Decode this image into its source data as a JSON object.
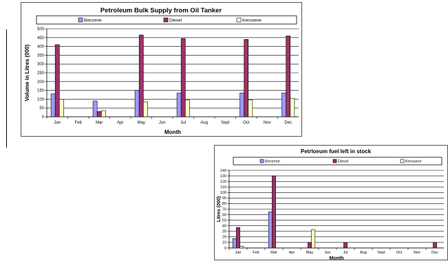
{
  "charts": [
    {
      "id": "supply",
      "chart_data": {
        "type": "bar",
        "title": "Petroleum Bulk Supply from Oil Tanker",
        "xlabel": "Month",
        "ylabel": "Volume in Litres (000)",
        "categories": [
          "Jan",
          "Feb",
          "Mar",
          "Apr",
          "May",
          "Jun",
          "Jul",
          "Aug",
          "Sept",
          "Oct",
          "Nov",
          "Dec"
        ],
        "ylim": [
          0,
          500
        ],
        "yticks": [
          "0",
          "50",
          "100",
          "150",
          "200",
          "250",
          "300",
          "350",
          "400",
          "450",
          "500"
        ],
        "grid": true,
        "legend_position": "top",
        "series": [
          {
            "name": "Benzene",
            "color": "#9999ff",
            "values": [
              130,
              0,
              90,
              0,
              150,
              0,
              135,
              0,
              0,
              135,
              0,
              135
            ]
          },
          {
            "name": "Diesel",
            "color": "#993366",
            "values": [
              410,
              0,
              30,
              0,
              465,
              0,
              445,
              0,
              0,
              440,
              0,
              460
            ]
          },
          {
            "name": "Kerosene",
            "color": "#ffffcc",
            "values": [
              100,
              0,
              35,
              0,
              85,
              0,
              95,
              0,
              0,
              95,
              0,
              105
            ]
          }
        ]
      }
    },
    {
      "id": "stock",
      "chart_data": {
        "type": "bar",
        "title": "Petrloeum fuel left in stock",
        "xlabel": "Month",
        "ylabel": "Litres (000)",
        "categories": [
          "Jan",
          "Feb",
          "Mar",
          "Apr",
          "May",
          "Jun",
          "Jul",
          "Aug",
          "Sept",
          "Oct",
          "Nov",
          "Dec"
        ],
        "ylim": [
          0,
          140
        ],
        "yticks": [
          "0",
          "10",
          "20",
          "30",
          "40",
          "50",
          "60",
          "70",
          "80",
          "90",
          "100",
          "110",
          "120",
          "130",
          "140"
        ],
        "grid": true,
        "legend_position": "top",
        "series": [
          {
            "name": "Benzene",
            "color": "#9999ff",
            "values": [
              17,
              0,
              65,
              0,
              0,
              0,
              0,
              0,
              0,
              0,
              0,
              0
            ]
          },
          {
            "name": "Diesel",
            "color": "#993366",
            "values": [
              37,
              0,
              130,
              0,
              10,
              0,
              10,
              0,
              0,
              0,
              0,
              10
            ]
          },
          {
            "name": "Kerosene",
            "color": "#ffffcc",
            "values": [
              3,
              0,
              0,
              0,
              33,
              0,
              0,
              0,
              0,
              0,
              0,
              0
            ]
          }
        ]
      }
    }
  ]
}
